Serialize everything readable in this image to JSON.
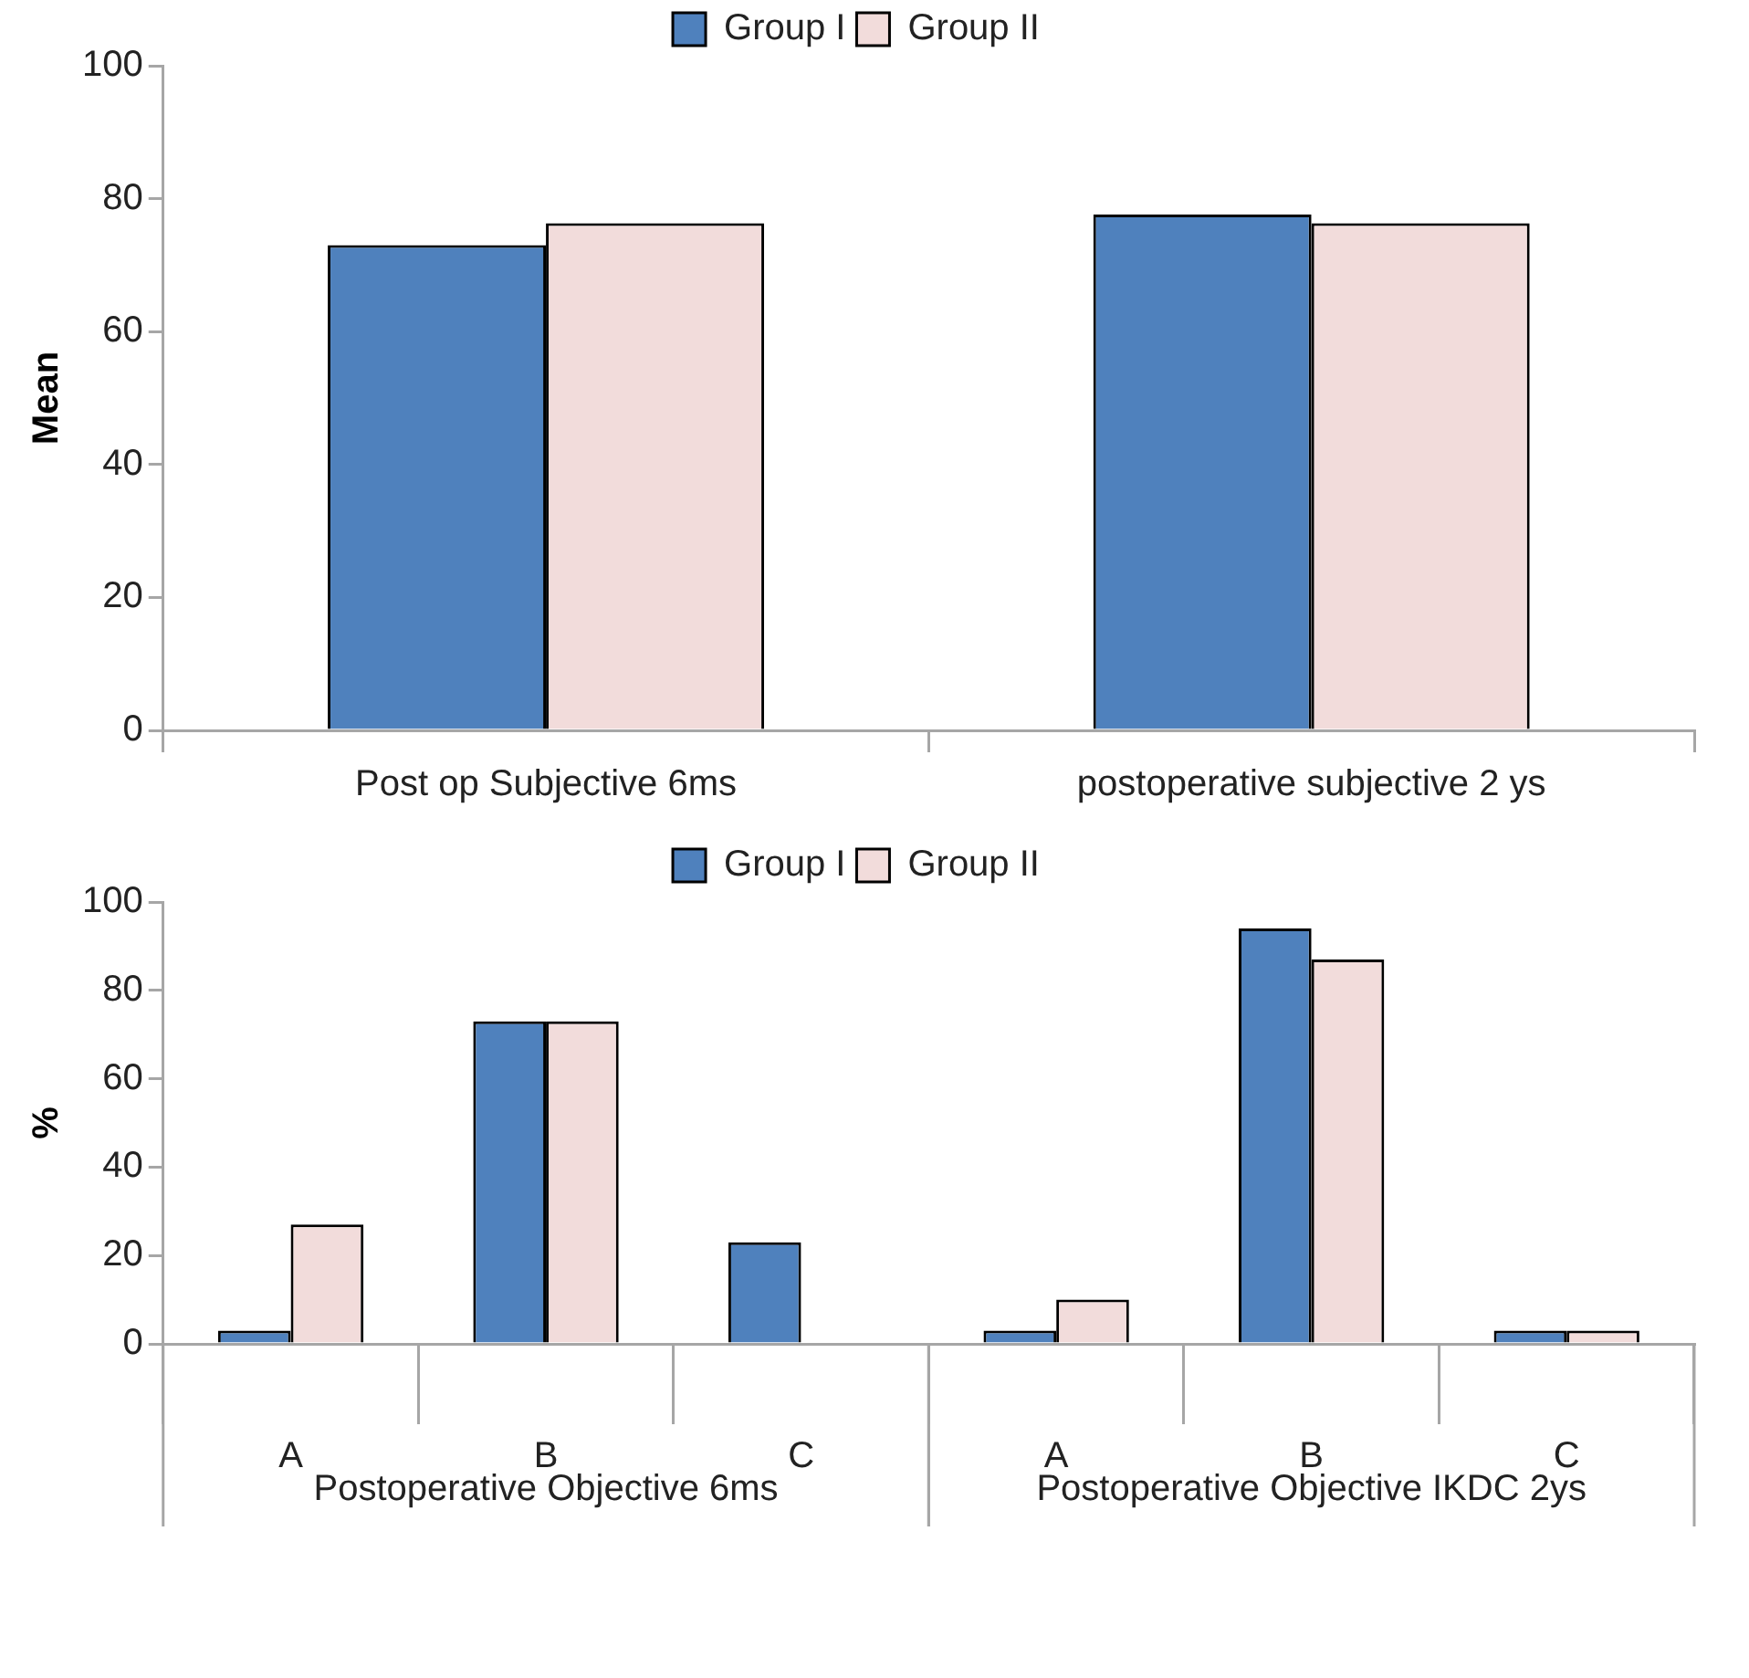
{
  "chart_data": [
    {
      "type": "bar",
      "ylabel": "Mean",
      "categories": [
        "Post op Subjective 6ms",
        "postoperative subjective 2 ys"
      ],
      "ylim": [
        0,
        100
      ],
      "yticks": [
        0,
        20,
        40,
        60,
        80,
        100
      ],
      "grid": false,
      "legend": "top",
      "series": [
        {
          "name": "Group I",
          "color": "#4f81bd",
          "values": [
            73,
            77.6
          ]
        },
        {
          "name": "Group II",
          "color": "#f2dcdb",
          "values": [
            76.3,
            76.3
          ]
        }
      ]
    },
    {
      "type": "bar",
      "ylabel": "%",
      "categories": [
        "A",
        "B",
        "C",
        "A",
        "B",
        "C"
      ],
      "ylim": [
        0,
        100
      ],
      "yticks": [
        0,
        20,
        40,
        60,
        80,
        100
      ],
      "grid": false,
      "legend": "top",
      "annotations": [
        "Postoperative Objective 6ms",
        "Postoperative Objective IKDC 2ys"
      ],
      "series": [
        {
          "name": "Group I",
          "color": "#4f81bd",
          "values": [
            3,
            73,
            23,
            3,
            94,
            3
          ]
        },
        {
          "name": "Group II",
          "color": "#f2dcdb",
          "values": [
            27,
            73,
            0,
            10,
            87,
            3
          ]
        }
      ]
    }
  ]
}
